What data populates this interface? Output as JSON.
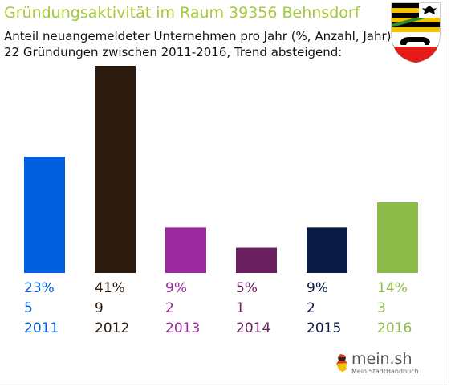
{
  "header": {
    "title": "Gründungsaktivität im Raum 39356 Behnsdorf",
    "subtitle_line1": "Anteil neuangemeldeter Unternehmen pro Jahr (%, Anzahl, Jahr)",
    "subtitle_line2": "22 Gründungen zwischen 2011-2016, Trend absteigend:"
  },
  "logo": {
    "name": "mein.sh",
    "tagline": "Mein StadtHandbuch",
    "icon": "germany-map-icon"
  },
  "coat_of_arms": {
    "icon": "coat-of-arms-icon"
  },
  "chart_data": {
    "type": "bar",
    "title": "Gründungsaktivität im Raum 39356 Behnsdorf",
    "xlabel": "",
    "ylabel": "",
    "grid": false,
    "legend": "none",
    "categories": [
      "2011",
      "2012",
      "2013",
      "2014",
      "2015",
      "2016"
    ],
    "values": [
      23,
      41,
      9,
      5,
      9,
      14
    ],
    "percent_labels": [
      "23%",
      "41%",
      "9%",
      "5%",
      "9%",
      "14%"
    ],
    "counts": [
      5,
      9,
      2,
      1,
      2,
      3
    ],
    "colors": [
      "#0060df",
      "#2b1b0f",
      "#9a2a9e",
      "#6a1f5e",
      "#0a1a44",
      "#8dbb4a"
    ],
    "ylim": [
      0,
      41
    ]
  }
}
